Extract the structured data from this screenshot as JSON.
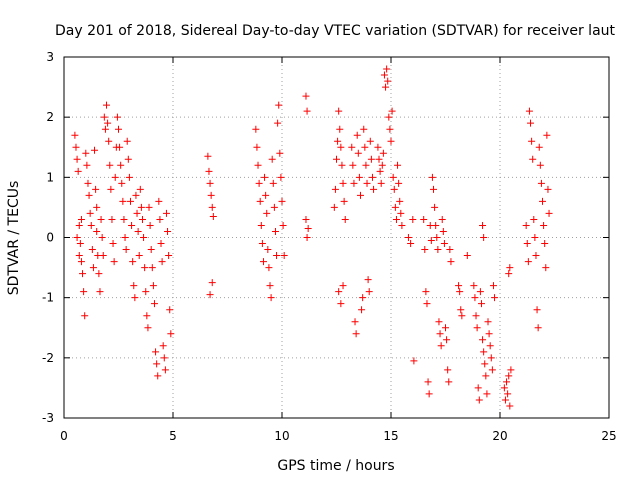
{
  "chart_data": {
    "type": "scatter",
    "title": "Day 201 of 2018, Sidereal Day-to-day VTEC variation (SDTVAR) for receiver laut",
    "xlabel": "GPS time / hours",
    "ylabel": "SDTVAR / TECUs",
    "xlim": [
      0,
      25
    ],
    "ylim": [
      -3,
      3
    ],
    "xticks": [
      "0",
      "5",
      "10",
      "15",
      "20",
      "25"
    ],
    "yticks": [
      "-3",
      "-2",
      "-1",
      "0",
      "1",
      "2",
      "3"
    ],
    "grid": true,
    "marker": "+",
    "color": "#ff0000",
    "series": [
      {
        "name": "SDTVAR",
        "points": [
          [
            0.5,
            1.7
          ],
          [
            0.55,
            1.5
          ],
          [
            0.6,
            1.3
          ],
          [
            0.65,
            1.1
          ],
          [
            0.7,
            0.2
          ],
          [
            0.75,
            -0.1
          ],
          [
            0.8,
            -0.4
          ],
          [
            0.85,
            -0.6
          ],
          [
            0.9,
            -0.9
          ],
          [
            0.95,
            -1.3
          ],
          [
            0.6,
            0.0
          ],
          [
            0.7,
            -0.3
          ],
          [
            0.8,
            0.3
          ],
          [
            1.0,
            1.4
          ],
          [
            1.05,
            1.2
          ],
          [
            1.1,
            0.9
          ],
          [
            1.15,
            0.7
          ],
          [
            1.2,
            0.4
          ],
          [
            1.25,
            0.2
          ],
          [
            1.3,
            -0.2
          ],
          [
            1.35,
            -0.5
          ],
          [
            1.4,
            1.45
          ],
          [
            1.45,
            0.8
          ],
          [
            1.5,
            0.5
          ],
          [
            1.5,
            0.1
          ],
          [
            1.55,
            -0.3
          ],
          [
            1.6,
            -0.6
          ],
          [
            1.65,
            -0.9
          ],
          [
            1.7,
            0.3
          ],
          [
            1.75,
            0.0
          ],
          [
            1.8,
            -0.3
          ],
          [
            1.85,
            2.0
          ],
          [
            1.9,
            1.8
          ],
          [
            1.95,
            2.2
          ],
          [
            2.0,
            1.9
          ],
          [
            2.05,
            1.6
          ],
          [
            2.1,
            1.2
          ],
          [
            2.15,
            0.8
          ],
          [
            2.2,
            0.3
          ],
          [
            2.25,
            -0.1
          ],
          [
            2.3,
            -0.4
          ],
          [
            2.35,
            1.0
          ],
          [
            2.4,
            1.5
          ],
          [
            2.45,
            2.0
          ],
          [
            2.5,
            1.8
          ],
          [
            2.55,
            1.5
          ],
          [
            2.6,
            1.2
          ],
          [
            2.65,
            0.9
          ],
          [
            2.7,
            0.6
          ],
          [
            2.75,
            0.3
          ],
          [
            2.8,
            0.0
          ],
          [
            2.85,
            -0.2
          ],
          [
            2.9,
            1.6
          ],
          [
            2.95,
            1.3
          ],
          [
            3.0,
            1.0
          ],
          [
            3.05,
            0.6
          ],
          [
            3.1,
            0.2
          ],
          [
            3.15,
            -0.4
          ],
          [
            3.2,
            -0.8
          ],
          [
            3.25,
            -1.0
          ],
          [
            3.3,
            0.7
          ],
          [
            3.35,
            0.4
          ],
          [
            3.4,
            0.1
          ],
          [
            3.45,
            -0.3
          ],
          [
            3.5,
            0.8
          ],
          [
            3.55,
            0.5
          ],
          [
            3.6,
            0.3
          ],
          [
            3.65,
            0.0
          ],
          [
            3.7,
            -0.5
          ],
          [
            3.75,
            -0.9
          ],
          [
            3.8,
            -1.3
          ],
          [
            3.85,
            -1.5
          ],
          [
            3.9,
            0.5
          ],
          [
            3.95,
            0.2
          ],
          [
            4.0,
            -0.2
          ],
          [
            4.05,
            -0.5
          ],
          [
            4.1,
            -0.8
          ],
          [
            4.15,
            -1.1
          ],
          [
            4.2,
            -1.9
          ],
          [
            4.25,
            -2.1
          ],
          [
            4.3,
            -2.3
          ],
          [
            4.35,
            0.6
          ],
          [
            4.4,
            0.3
          ],
          [
            4.45,
            -0.1
          ],
          [
            4.5,
            -0.4
          ],
          [
            4.55,
            -1.8
          ],
          [
            4.6,
            -2.0
          ],
          [
            4.65,
            -2.2
          ],
          [
            4.7,
            0.4
          ],
          [
            4.75,
            0.1
          ],
          [
            4.8,
            -0.3
          ],
          [
            4.85,
            -1.2
          ],
          [
            4.9,
            -1.6
          ],
          [
            6.6,
            1.35
          ],
          [
            6.65,
            1.1
          ],
          [
            6.7,
            0.9
          ],
          [
            6.75,
            0.7
          ],
          [
            6.8,
            0.5
          ],
          [
            6.85,
            0.35
          ],
          [
            6.7,
            -0.95
          ],
          [
            6.8,
            -0.75
          ],
          [
            8.8,
            1.8
          ],
          [
            8.85,
            1.5
          ],
          [
            8.9,
            1.2
          ],
          [
            8.95,
            0.9
          ],
          [
            9.0,
            0.6
          ],
          [
            9.05,
            0.2
          ],
          [
            9.1,
            -0.1
          ],
          [
            9.15,
            -0.4
          ],
          [
            9.2,
            1.0
          ],
          [
            9.25,
            0.7
          ],
          [
            9.3,
            0.4
          ],
          [
            9.35,
            -0.2
          ],
          [
            9.4,
            -0.5
          ],
          [
            9.45,
            -0.8
          ],
          [
            9.5,
            -1.0
          ],
          [
            9.55,
            1.3
          ],
          [
            9.6,
            0.9
          ],
          [
            9.65,
            0.5
          ],
          [
            9.7,
            0.1
          ],
          [
            9.75,
            -0.3
          ],
          [
            9.8,
            1.9
          ],
          [
            9.85,
            2.2
          ],
          [
            9.9,
            1.4
          ],
          [
            9.95,
            1.0
          ],
          [
            10.0,
            0.6
          ],
          [
            10.05,
            0.2
          ],
          [
            10.1,
            -0.3
          ],
          [
            11.1,
            2.35
          ],
          [
            11.15,
            2.1
          ],
          [
            11.1,
            0.3
          ],
          [
            11.15,
            0.0
          ],
          [
            11.2,
            0.15
          ],
          [
            12.4,
            0.5
          ],
          [
            12.45,
            0.8
          ],
          [
            12.5,
            1.3
          ],
          [
            12.55,
            1.6
          ],
          [
            12.6,
            2.1
          ],
          [
            12.65,
            1.8
          ],
          [
            12.7,
            1.5
          ],
          [
            12.75,
            1.2
          ],
          [
            12.8,
            0.9
          ],
          [
            12.85,
            0.6
          ],
          [
            12.9,
            0.3
          ],
          [
            12.6,
            -0.9
          ],
          [
            12.7,
            -1.1
          ],
          [
            12.8,
            -0.8
          ],
          [
            13.2,
            1.5
          ],
          [
            13.25,
            1.2
          ],
          [
            13.3,
            0.9
          ],
          [
            13.35,
            -1.4
          ],
          [
            13.4,
            -1.6
          ],
          [
            13.45,
            1.7
          ],
          [
            13.5,
            1.4
          ],
          [
            13.55,
            1.0
          ],
          [
            13.6,
            0.7
          ],
          [
            13.65,
            -1.2
          ],
          [
            13.7,
            -1.0
          ],
          [
            13.75,
            1.8
          ],
          [
            13.8,
            1.5
          ],
          [
            13.85,
            1.2
          ],
          [
            13.9,
            0.9
          ],
          [
            13.95,
            -0.7
          ],
          [
            14.0,
            -0.9
          ],
          [
            14.05,
            1.6
          ],
          [
            14.1,
            1.3
          ],
          [
            14.15,
            1.0
          ],
          [
            14.2,
            0.8
          ],
          [
            14.4,
            1.5
          ],
          [
            14.45,
            1.3
          ],
          [
            14.5,
            1.1
          ],
          [
            14.55,
            0.9
          ],
          [
            14.6,
            1.2
          ],
          [
            14.65,
            1.4
          ],
          [
            14.7,
            2.7
          ],
          [
            14.75,
            2.5
          ],
          [
            14.8,
            2.8
          ],
          [
            14.85,
            2.6
          ],
          [
            14.9,
            2.0
          ],
          [
            14.95,
            1.8
          ],
          [
            15.0,
            1.6
          ],
          [
            15.05,
            2.1
          ],
          [
            15.1,
            1.0
          ],
          [
            15.15,
            0.8
          ],
          [
            15.2,
            0.5
          ],
          [
            15.25,
            0.3
          ],
          [
            15.3,
            1.2
          ],
          [
            15.35,
            0.9
          ],
          [
            15.4,
            0.6
          ],
          [
            15.45,
            0.4
          ],
          [
            15.5,
            0.2
          ],
          [
            15.8,
            0.0
          ],
          [
            15.9,
            -0.1
          ],
          [
            16.0,
            0.3
          ],
          [
            16.05,
            -2.05
          ],
          [
            16.5,
            0.3
          ],
          [
            16.55,
            -0.2
          ],
          [
            16.6,
            -0.9
          ],
          [
            16.65,
            -1.1
          ],
          [
            16.7,
            -2.4
          ],
          [
            16.75,
            -2.6
          ],
          [
            16.8,
            0.2
          ],
          [
            16.85,
            -0.05
          ],
          [
            16.9,
            1.0
          ],
          [
            16.95,
            0.8
          ],
          [
            17.0,
            0.5
          ],
          [
            17.05,
            0.2
          ],
          [
            17.1,
            0.0
          ],
          [
            17.15,
            -0.2
          ],
          [
            17.2,
            -1.4
          ],
          [
            17.25,
            -1.6
          ],
          [
            17.3,
            -1.8
          ],
          [
            17.35,
            0.3
          ],
          [
            17.4,
            0.1
          ],
          [
            17.45,
            -0.1
          ],
          [
            17.5,
            -1.5
          ],
          [
            17.55,
            -1.7
          ],
          [
            17.6,
            -2.2
          ],
          [
            17.65,
            -2.4
          ],
          [
            17.7,
            -0.2
          ],
          [
            17.75,
            -0.4
          ],
          [
            18.1,
            -0.8
          ],
          [
            18.15,
            -0.9
          ],
          [
            18.2,
            -1.2
          ],
          [
            18.25,
            -1.3
          ],
          [
            18.5,
            -0.3
          ],
          [
            18.8,
            -0.8
          ],
          [
            18.85,
            -1.0
          ],
          [
            18.9,
            -1.3
          ],
          [
            18.95,
            -1.5
          ],
          [
            19.0,
            -2.5
          ],
          [
            19.05,
            -2.7
          ],
          [
            19.1,
            -0.9
          ],
          [
            19.15,
            -1.1
          ],
          [
            19.2,
            -1.7
          ],
          [
            19.25,
            -1.9
          ],
          [
            19.3,
            -2.1
          ],
          [
            19.35,
            -2.3
          ],
          [
            19.4,
            -2.6
          ],
          [
            19.45,
            -1.4
          ],
          [
            19.5,
            -1.6
          ],
          [
            19.55,
            -1.8
          ],
          [
            19.6,
            -2.0
          ],
          [
            19.65,
            -2.2
          ],
          [
            19.7,
            -0.8
          ],
          [
            19.75,
            -1.0
          ],
          [
            19.2,
            0.2
          ],
          [
            19.25,
            0.0
          ],
          [
            20.2,
            -2.5
          ],
          [
            20.25,
            -2.7
          ],
          [
            20.3,
            -2.4
          ],
          [
            20.35,
            -2.6
          ],
          [
            20.4,
            -2.3
          ],
          [
            20.45,
            -2.8
          ],
          [
            20.5,
            -2.2
          ],
          [
            20.4,
            -0.6
          ],
          [
            20.45,
            -0.5
          ],
          [
            21.2,
            0.2
          ],
          [
            21.25,
            -0.1
          ],
          [
            21.3,
            -0.4
          ],
          [
            21.35,
            2.1
          ],
          [
            21.4,
            1.9
          ],
          [
            21.45,
            1.6
          ],
          [
            21.5,
            1.3
          ],
          [
            21.55,
            0.3
          ],
          [
            21.6,
            0.0
          ],
          [
            21.65,
            -0.3
          ],
          [
            21.7,
            -1.2
          ],
          [
            21.75,
            -1.5
          ],
          [
            21.8,
            1.5
          ],
          [
            21.85,
            1.2
          ],
          [
            21.9,
            0.9
          ],
          [
            21.95,
            0.6
          ],
          [
            22.0,
            0.2
          ],
          [
            22.05,
            -0.1
          ],
          [
            22.1,
            -0.5
          ],
          [
            22.15,
            1.7
          ],
          [
            22.2,
            0.8
          ],
          [
            22.25,
            0.4
          ]
        ]
      }
    ]
  }
}
